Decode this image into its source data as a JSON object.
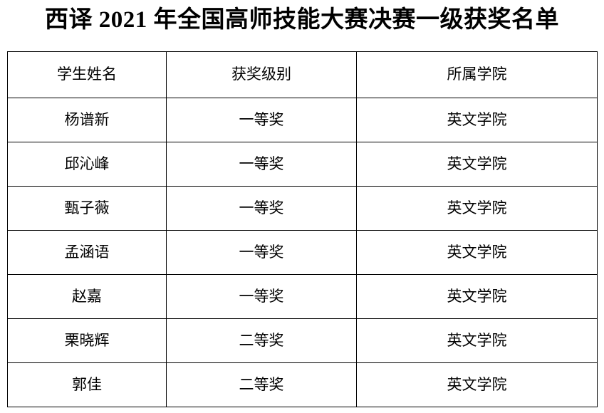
{
  "page": {
    "title": "西译 2021 年全国高师技能大赛决赛一级获奖名单"
  },
  "table": {
    "columns": [
      "学生姓名",
      "获奖级别",
      "所属学院"
    ],
    "rows": [
      [
        "杨谱新",
        "一等奖",
        "英文学院"
      ],
      [
        "邱沁峰",
        "一等奖",
        "英文学院"
      ],
      [
        "甄子薇",
        "一等奖",
        "英文学院"
      ],
      [
        "孟涵语",
        "一等奖",
        "英文学院"
      ],
      [
        "赵嘉",
        "一等奖",
        "英文学院"
      ],
      [
        "栗晓辉",
        "二等奖",
        "英文学院"
      ],
      [
        "郭佳",
        "二等奖",
        "英文学院"
      ]
    ]
  },
  "colors": {
    "text": "#000000",
    "border": "#000000",
    "background": "#ffffff"
  }
}
